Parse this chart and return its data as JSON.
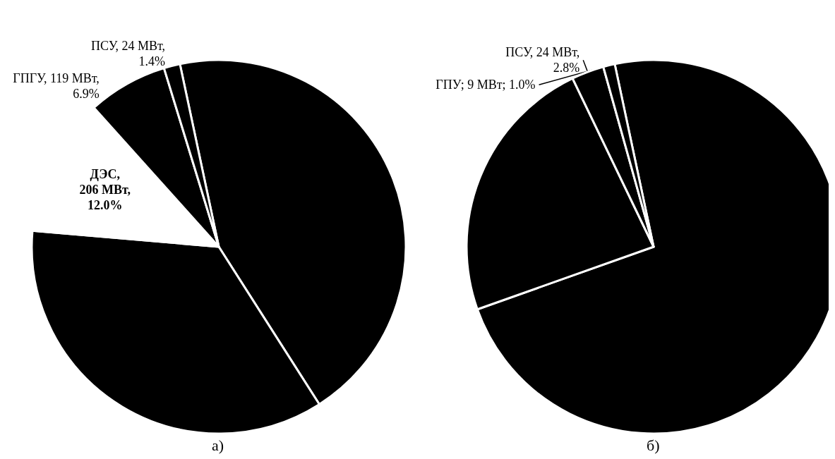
{
  "chart_data": [
    {
      "type": "pie",
      "categories": [
        null,
        null,
        "ДЭС,\n206 МВт,\n12.0%",
        "ГПГУ, 119 МВт,\n6.9%",
        "ПСУ, 24 МВт,\n1.4%"
      ],
      "values": [
        44.3,
        35.4,
        12.0,
        6.9,
        1.4
      ],
      "colors": [
        "#000000",
        "#000000",
        "#ffffff",
        "#000000",
        "#000000"
      ],
      "annotations": [
        "а)"
      ]
    },
    {
      "type": "pie",
      "categories": [
        null,
        null,
        "ПСУ, 24 МВт,\n2.8%",
        "ГПУ; 9 МВт; 1.0%"
      ],
      "values": [
        72.9,
        23.3,
        2.8,
        1.0
      ],
      "colors": [
        "#000000",
        "#000000",
        "#000000",
        "#000000"
      ],
      "annotations": [
        "б)"
      ]
    }
  ]
}
